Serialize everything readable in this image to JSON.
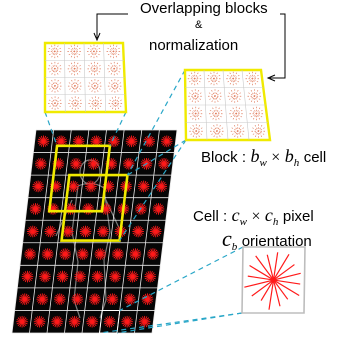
{
  "labels": {
    "title_line1": "Overlapping blocks",
    "title_amp": "&",
    "title_line2": "normalization",
    "block_prefix": "Block :",
    "block_w": "b",
    "block_w_sub": "w",
    "block_times": "×",
    "block_h": "b",
    "block_h_sub": "h",
    "block_suffix": "cell",
    "cell_prefix": "Cell :",
    "cell_w": "c",
    "cell_w_sub": "w",
    "cell_times": "×",
    "cell_h": "c",
    "cell_h_sub": "h",
    "cell_suffix": "pixel",
    "orient_var": "c",
    "orient_sub": "b",
    "orient_suffix": "orientation"
  },
  "colors": {
    "grid_background": "#060606",
    "grid_lines": "#e8e8e8",
    "star": "#ff1a1a",
    "highlight": "#f0ea00",
    "connector": "#2aa7c8",
    "block_dots": "#e07a5a",
    "cell_border": "#bdbdbd",
    "arrow": "#000000"
  },
  "icons": [
    "grid-image-panel",
    "block-panel-icon",
    "cell-panel-icon",
    "orientation-star-icon",
    "curved-arrow-icon"
  ]
}
